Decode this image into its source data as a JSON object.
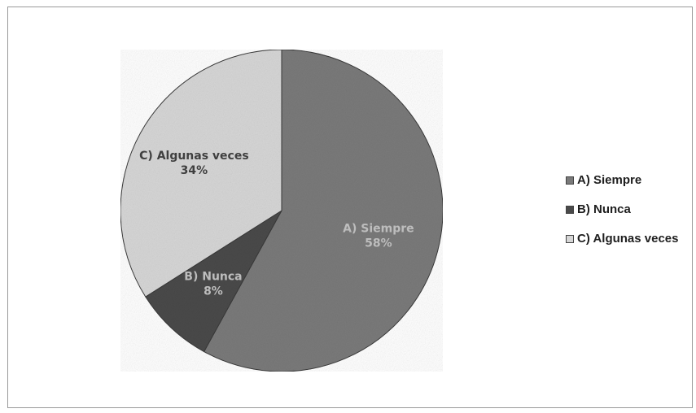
{
  "chart_data": {
    "type": "pie",
    "title": "",
    "slices": [
      {
        "label": "A) Siempre",
        "value": 58,
        "display": "58%",
        "color": "#7a7a7a"
      },
      {
        "label": "B) Nunca",
        "value": 8,
        "display": "8%",
        "color": "#4a4a4a"
      },
      {
        "label": "C) Algunas veces",
        "value": 34,
        "display": "34%",
        "color": "#d6d6d6"
      }
    ],
    "legend_position": "right",
    "start_angle_deg": 0,
    "direction": "clockwise"
  }
}
